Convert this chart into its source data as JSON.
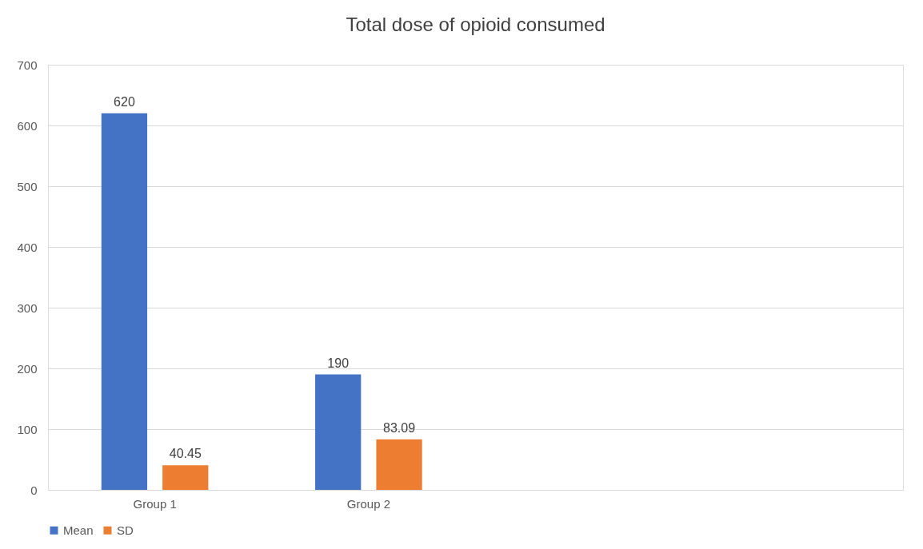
{
  "chart_data": {
    "type": "bar",
    "title": "Total dose of opioid consumed",
    "categories": [
      "Group 1",
      "Group 2",
      null,
      null
    ],
    "series": [
      {
        "name": "Mean",
        "color": "#4472c4",
        "values": [
          620,
          190,
          null,
          null
        ]
      },
      {
        "name": "SD",
        "color": "#ed7d31",
        "values": [
          40.45,
          83.09,
          null,
          null
        ]
      }
    ],
    "ylim": [
      0,
      700
    ],
    "yticks": [
      0,
      100,
      200,
      300,
      400,
      500,
      600,
      700
    ],
    "grid": "y",
    "legend": "bottom",
    "data_labels": true
  }
}
